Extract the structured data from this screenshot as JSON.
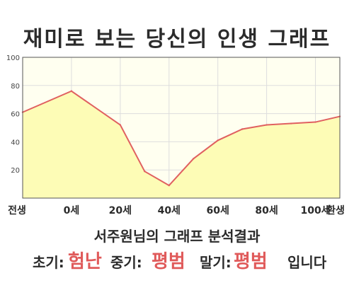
{
  "chart_data": {
    "type": "area",
    "title": "재미로 보는 당신의 인생 그래프",
    "categories": [
      "전생",
      "0세",
      "20세",
      "40세",
      "60세",
      "80세",
      "100세",
      "환생"
    ],
    "x": [
      -20,
      0,
      20,
      30,
      40,
      50,
      60,
      70,
      80,
      90,
      100,
      110
    ],
    "values": [
      61,
      76,
      52,
      19,
      9,
      28,
      41,
      49,
      52,
      53,
      54,
      58
    ],
    "ylim": [
      0,
      100
    ],
    "xlim": [
      -20,
      110
    ],
    "yticks": [
      20,
      40,
      60,
      80,
      100
    ],
    "grid": true,
    "colors": {
      "line": "#e06060",
      "fill": "#fdfcb6",
      "plot_bg": "#fffff0",
      "grid": "#dddddd"
    }
  },
  "summary": {
    "caption": "서주원님의 그래프 분석결과",
    "early_label": "초기:",
    "early_value": "험난",
    "mid_label": "중기:",
    "mid_value": "평범",
    "late_label": "말기:",
    "late_value": "평범",
    "ending": "입니다"
  }
}
